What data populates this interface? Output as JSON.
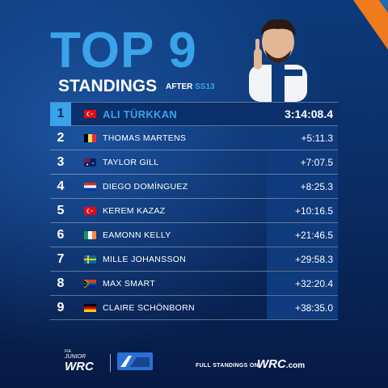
{
  "header": {
    "title": "TOP 9",
    "subtitle": "STANDINGS",
    "after_label": "AFTER",
    "stage": "SS13"
  },
  "standings": [
    {
      "pos": "1",
      "name": "ALI TÜRKKAN",
      "time": "3:14:08.4",
      "flag": "turkey"
    },
    {
      "pos": "2",
      "name": "THOMAS MARTENS",
      "time": "+5:11.3",
      "flag": "belgium"
    },
    {
      "pos": "3",
      "name": "TAYLOR GILL",
      "time": "+7:07.5",
      "flag": "australia"
    },
    {
      "pos": "4",
      "name": "DIEGO DOMÍNGUEZ",
      "time": "+8:25.3",
      "flag": "paraguay"
    },
    {
      "pos": "5",
      "name": "KEREM KAZAZ",
      "time": "+10:16.5",
      "flag": "turkey"
    },
    {
      "pos": "6",
      "name": "EAMONN KELLY",
      "time": "+21:46.5",
      "flag": "ireland"
    },
    {
      "pos": "7",
      "name": "MILLE JOHANSSON",
      "time": "+29:58.3",
      "flag": "sweden"
    },
    {
      "pos": "8",
      "name": "MAX SMART",
      "time": "+32:20.4",
      "flag": "south-africa"
    },
    {
      "pos": "9",
      "name": "CLAIRE SCHÖNBORN",
      "time": "+38:35.0",
      "flag": "germany"
    }
  ],
  "footer": {
    "logo_top": "FIA",
    "logo_mid": "JUNIOR",
    "logo_main": "WRC",
    "full_standings": "FULL STANDINGS ON",
    "wrc": "WRC",
    "wrc_domain": ".com"
  },
  "colors": {
    "accent": "#3aa3ea",
    "orange": "#f07a1e",
    "background": "#0b2a5c"
  }
}
